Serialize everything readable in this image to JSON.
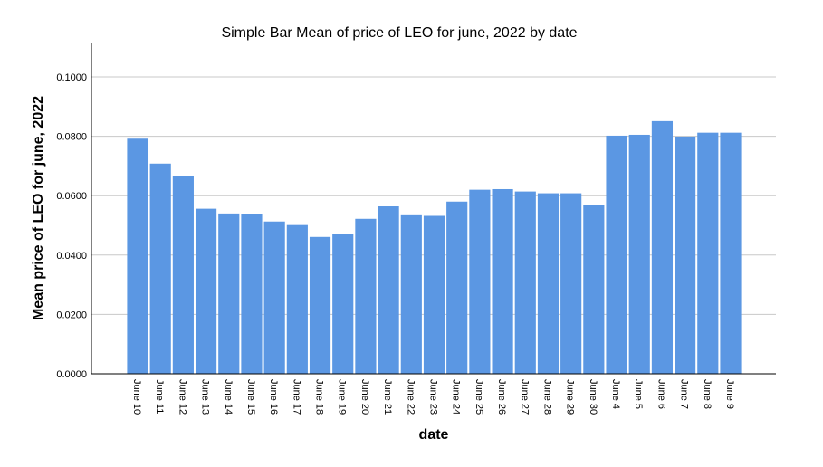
{
  "chart_data": {
    "type": "bar",
    "title": "Simple Bar Mean of price of LEO for june, 2022 by date",
    "xlabel": "date",
    "ylabel": "Mean price of LEO for june, 2022",
    "ylim": [
      0,
      0.1
    ],
    "yticks": [
      "0.0000",
      "0.0200",
      "0.0400",
      "0.0600",
      "0.0800",
      "0.1000"
    ],
    "grid": true,
    "bar_color": "#5b97e3",
    "categories": [
      "June 10",
      "June 11",
      "June 12",
      "June 13",
      "June 14",
      "June 15",
      "June 16",
      "June 17",
      "June 18",
      "June 19",
      "June 20",
      "June 21",
      "June 22",
      "June 23",
      "June 24",
      "June 25",
      "June 26",
      "June 27",
      "June 28",
      "June 29",
      "June 30",
      "June 4",
      "June 5",
      "June 6",
      "June 7",
      "June 8",
      "June 9"
    ],
    "values": [
      0.0792,
      0.0708,
      0.0667,
      0.0556,
      0.054,
      0.0537,
      0.0513,
      0.0501,
      0.0461,
      0.0471,
      0.0522,
      0.0564,
      0.0534,
      0.0532,
      0.058,
      0.062,
      0.0622,
      0.0614,
      0.0608,
      0.0608,
      0.0569,
      0.0802,
      0.0805,
      0.0851,
      0.0799,
      0.0812,
      0.0812
    ]
  }
}
